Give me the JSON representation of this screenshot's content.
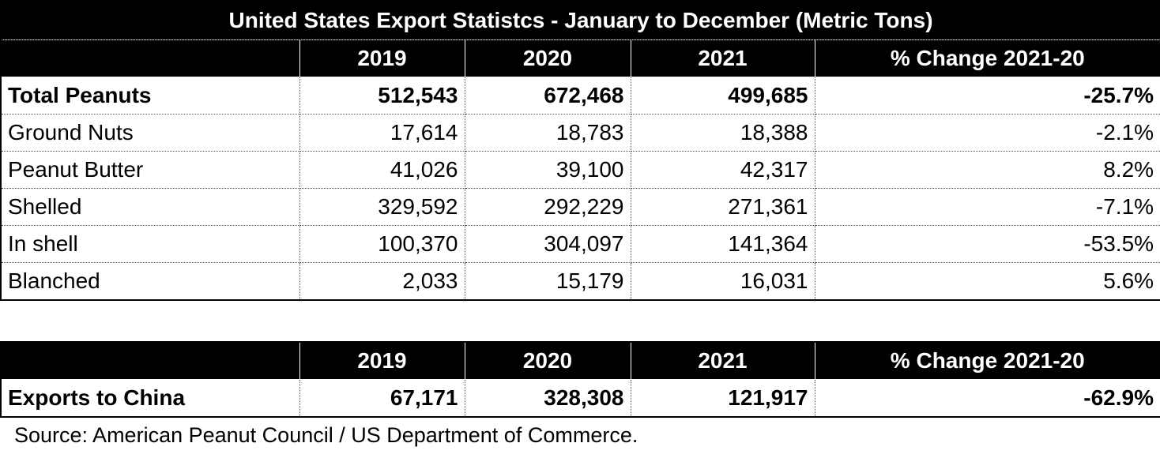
{
  "main_table": {
    "title": "United States Export Statistcs -  January to December (Metric Tons)",
    "headers": [
      "",
      "2019",
      "2020",
      "2021",
      "% Change 2021-20"
    ],
    "rows": [
      {
        "label": "Total Peanuts",
        "v2019": "512,543",
        "v2020": "672,468",
        "v2021": "499,685",
        "change": "-25.7%",
        "bold": true
      },
      {
        "label": "Ground Nuts",
        "v2019": "17,614",
        "v2020": "18,783",
        "v2021": "18,388",
        "change": "-2.1%"
      },
      {
        "label": "Peanut Butter",
        "v2019": "41,026",
        "v2020": "39,100",
        "v2021": "42,317",
        "change": "8.2%"
      },
      {
        "label": "Shelled",
        "v2019": "329,592",
        "v2020": "292,229",
        "v2021": "271,361",
        "change": "-7.1%"
      },
      {
        "label": "In shell",
        "v2019": "100,370",
        "v2020": "304,097",
        "v2021": "141,364",
        "change": "-53.5%"
      },
      {
        "label": "Blanched",
        "v2019": "2,033",
        "v2020": "15,179",
        "v2021": "16,031",
        "change": "5.6%"
      }
    ]
  },
  "china_table": {
    "headers": [
      "",
      "2019",
      "2020",
      "2021",
      "% Change 2021-20"
    ],
    "row": {
      "label": "Exports to China",
      "v2019": "67,171",
      "v2020": "328,308",
      "v2021": "121,917",
      "change": "-62.9%"
    }
  },
  "source": "Source: American Peanut Council / US Department of Commerce."
}
